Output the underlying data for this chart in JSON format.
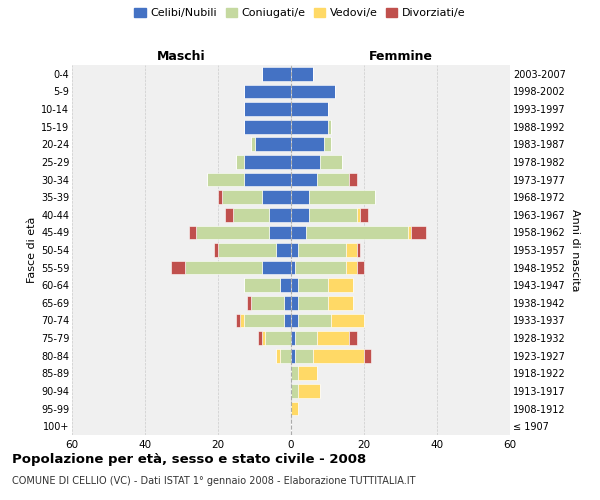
{
  "age_groups": [
    "100+",
    "95-99",
    "90-94",
    "85-89",
    "80-84",
    "75-79",
    "70-74",
    "65-69",
    "60-64",
    "55-59",
    "50-54",
    "45-49",
    "40-44",
    "35-39",
    "30-34",
    "25-29",
    "20-24",
    "15-19",
    "10-14",
    "5-9",
    "0-4"
  ],
  "birth_years": [
    "≤ 1907",
    "1908-1912",
    "1913-1917",
    "1918-1922",
    "1923-1927",
    "1928-1932",
    "1933-1937",
    "1938-1942",
    "1943-1947",
    "1948-1952",
    "1953-1957",
    "1958-1962",
    "1963-1967",
    "1968-1972",
    "1973-1977",
    "1978-1982",
    "1983-1987",
    "1988-1992",
    "1993-1997",
    "1998-2002",
    "2003-2007"
  ],
  "maschi": {
    "celibi": [
      0,
      0,
      0,
      0,
      0,
      0,
      2,
      2,
      3,
      8,
      4,
      6,
      6,
      8,
      13,
      13,
      10,
      13,
      13,
      13,
      8
    ],
    "coniugati": [
      0,
      0,
      0,
      0,
      3,
      7,
      11,
      9,
      10,
      21,
      16,
      20,
      10,
      11,
      10,
      2,
      1,
      0,
      0,
      0,
      0
    ],
    "vedovi": [
      0,
      0,
      0,
      0,
      1,
      1,
      1,
      0,
      0,
      0,
      0,
      0,
      0,
      0,
      0,
      0,
      0,
      0,
      0,
      0,
      0
    ],
    "divorziati": [
      0,
      0,
      0,
      0,
      0,
      1,
      1,
      1,
      0,
      4,
      1,
      2,
      2,
      1,
      0,
      0,
      0,
      0,
      0,
      0,
      0
    ]
  },
  "femmine": {
    "nubili": [
      0,
      0,
      0,
      0,
      1,
      1,
      2,
      2,
      2,
      1,
      2,
      4,
      5,
      5,
      7,
      8,
      9,
      10,
      10,
      12,
      6
    ],
    "coniugate": [
      0,
      0,
      2,
      2,
      5,
      6,
      9,
      8,
      8,
      14,
      13,
      28,
      13,
      18,
      9,
      6,
      2,
      1,
      0,
      0,
      0
    ],
    "vedove": [
      0,
      2,
      6,
      5,
      14,
      9,
      9,
      7,
      7,
      3,
      3,
      1,
      1,
      0,
      0,
      0,
      0,
      0,
      0,
      0,
      0
    ],
    "divorziate": [
      0,
      0,
      0,
      0,
      2,
      2,
      0,
      0,
      0,
      2,
      1,
      4,
      2,
      0,
      2,
      0,
      0,
      0,
      0,
      0,
      0
    ]
  },
  "color_celibi": "#4472C4",
  "color_coniugati": "#C5D9A0",
  "color_vedovi": "#FFD966",
  "color_divorziati": "#C0504D",
  "title_main": "Popolazione per età, sesso e stato civile - 2008",
  "title_sub": "COMUNE DI CELLIO (VC) - Dati ISTAT 1° gennaio 2008 - Elaborazione TUTTITALIA.IT",
  "ylabel_left": "Fasce di età",
  "ylabel_right": "Anni di nascita",
  "xlim": 60,
  "bg_color": "#ffffff",
  "grid_color": "#cccccc",
  "legend_labels": [
    "Celibi/Nubili",
    "Coniugati/e",
    "Vedovi/e",
    "Divorziati/e"
  ]
}
